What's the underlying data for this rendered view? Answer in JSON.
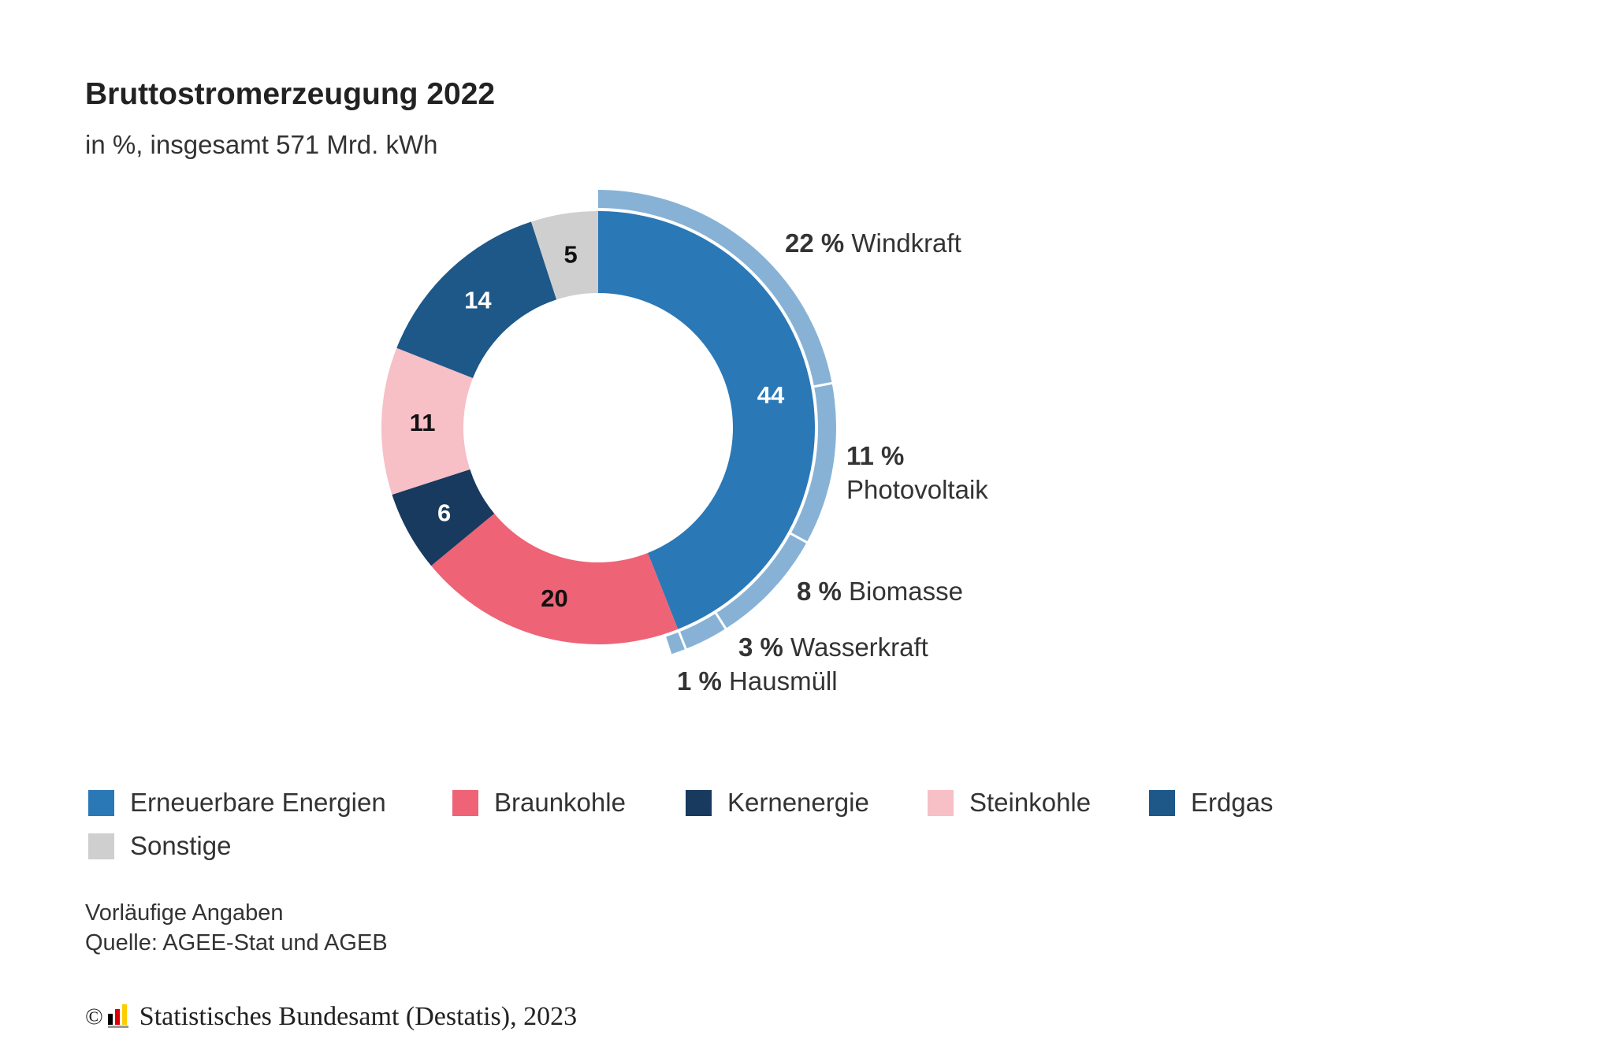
{
  "chart_data": {
    "type": "pie",
    "title": "Bruttostromerzeugung 2022",
    "subtitle": "in %, insgesamt 571 Mrd. kWh",
    "series": [
      {
        "name": "Erneuerbare Energien",
        "value": 44,
        "label": "44",
        "color": "#2b78b7",
        "label_color": "#ffffff"
      },
      {
        "name": "Braunkohle",
        "value": 20,
        "label": "20",
        "color": "#ee6376",
        "label_color": "#111111"
      },
      {
        "name": "Kernenergie",
        "value": 6,
        "label": "6",
        "color": "#173a5e",
        "label_color": "#ffffff"
      },
      {
        "name": "Steinkohle",
        "value": 11,
        "label": "11",
        "color": "#f7bfc6",
        "label_color": "#111111"
      },
      {
        "name": "Erdgas",
        "value": 14,
        "label": "14",
        "color": "#1d5889",
        "label_color": "#ffffff"
      },
      {
        "name": "Sonstige",
        "value": 5,
        "label": "5",
        "color": "#cfcfcf",
        "label_color": "#111111"
      }
    ],
    "breakdown": {
      "parent": "Erneuerbare Energien",
      "color": "#87b2d6",
      "items": [
        {
          "name": "Windkraft",
          "value": 22,
          "pct_text": "22 %",
          "name_text": "Windkraft"
        },
        {
          "name": "Photovoltaik",
          "value": 11,
          "pct_text": "11 %",
          "name_text": "Photovoltaik"
        },
        {
          "name": "Biomasse",
          "value": 8,
          "pct_text": "8 %",
          "name_text": "Biomasse"
        },
        {
          "name": "Wasserkraft",
          "value": 3,
          "pct_text": "3 %",
          "name_text": "Wasserkraft"
        },
        {
          "name": "Hausmüll",
          "value": 1,
          "pct_text": "1 %",
          "name_text": "Hausmüll"
        }
      ]
    },
    "legend": [
      "Erneuerbare Energien",
      "Braunkohle",
      "Kernenergie",
      "Steinkohle",
      "Erdgas",
      "Sonstige"
    ]
  },
  "notes": {
    "line1": "Vorläufige Angaben",
    "line2": "Quelle: AGEE-Stat und AGEB"
  },
  "footer": {
    "copyright_symbol": "©",
    "text": "Statistisches Bundesamt (Destatis), 2023"
  },
  "logo_colors": {
    "black": "#000000",
    "red": "#dd0000",
    "gold": "#ffcc00"
  }
}
